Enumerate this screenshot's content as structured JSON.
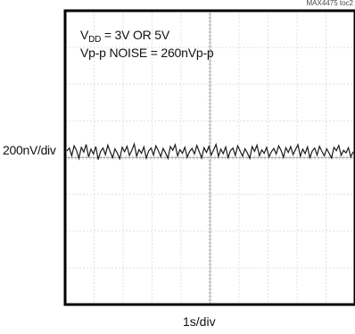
{
  "figure_id": "MAX4475 toc2",
  "annotations": {
    "line1_prefix": "V",
    "line1_subscript": "DD",
    "line1_rest": " = 3V OR 5V",
    "line2": "Vp-p NOISE = 260nVp-p"
  },
  "chart_data": {
    "type": "line",
    "title": "",
    "xlabel": "1s/div",
    "ylabel": "200nV/div",
    "grid": true,
    "major_divisions": {
      "x": 10,
      "y": 8
    },
    "series": [
      {
        "values": [
          0.08,
          0.16,
          -0.05,
          0.22,
          0.1,
          -0.12,
          0.18,
          0.05,
          0.26,
          -0.08,
          0.13,
          0.0,
          0.2,
          -0.15,
          0.07,
          0.16,
          -0.02,
          0.24,
          0.05,
          -0.1,
          0.14,
          0.02,
          -0.13,
          0.18,
          0.06,
          0.21,
          -0.04,
          0.1,
          0.27,
          -0.06,
          0.12,
          0.02,
          0.19,
          -0.11,
          0.08,
          0.16,
          -0.03,
          0.22,
          0.09,
          -0.07,
          0.15,
          0.03,
          -0.12,
          0.2,
          0.1,
          0.25,
          -0.05,
          0.12,
          0.02,
          0.18,
          -0.09,
          0.07,
          0.15,
          0.0,
          0.23,
          0.06,
          -0.11,
          0.17,
          0.04,
          0.21,
          -0.03,
          0.11,
          0.26,
          -0.07,
          0.13,
          0.01,
          0.19,
          -0.1,
          0.09,
          0.16,
          -0.04,
          0.22,
          0.08,
          -0.06,
          0.14,
          0.03,
          -0.12,
          0.2,
          0.07,
          0.24,
          -0.05,
          0.11,
          0.02,
          0.18,
          -0.08,
          0.06,
          0.15,
          0.0,
          0.22,
          0.1,
          -0.09,
          0.17,
          0.04,
          0.2,
          -0.02,
          0.12,
          0.25,
          -0.06,
          0.13,
          0.01,
          0.19,
          -0.1,
          0.08,
          0.16,
          -0.03,
          0.21,
          0.07,
          -0.05,
          0.14,
          0.02,
          -0.11,
          0.18,
          0.09,
          0.23,
          -0.04,
          0.1,
          0.03,
          0.17,
          -0.08,
          0.06
        ]
      }
    ]
  }
}
